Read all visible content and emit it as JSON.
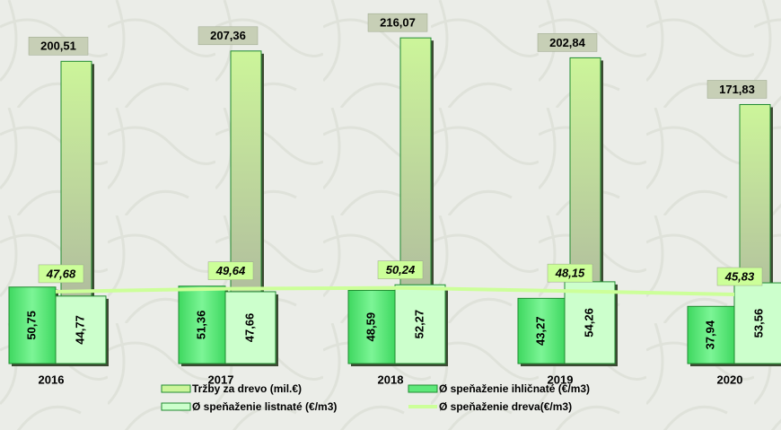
{
  "chart_data": {
    "type": "bar",
    "categories": [
      "2016",
      "2017",
      "2018",
      "2019",
      "2020"
    ],
    "ylim": [
      0,
      240
    ],
    "series": [
      {
        "name": "Tržby za drevo (mil.€)",
        "type": "bar",
        "color": "#ccf59a",
        "values": [
          200.51,
          207.36,
          216.07,
          202.84,
          171.83
        ],
        "value_labels": [
          "200,51",
          "207,36",
          "216,07",
          "202,84",
          "171,83"
        ]
      },
      {
        "name": "Ø speňaženie ihličnaté (€/m3)",
        "type": "bar",
        "color": "#5ee87a",
        "values": [
          50.75,
          51.36,
          48.59,
          43.27,
          37.94
        ],
        "value_labels": [
          "50,75",
          "51,36",
          "48,59",
          "43,27",
          "37,94"
        ]
      },
      {
        "name": "Ø speňaženie listnaté (€/m3)",
        "type": "bar",
        "color": "#ccffcc",
        "values": [
          44.77,
          47.66,
          52.27,
          54.26,
          53.56
        ],
        "value_labels": [
          "44,77",
          "47,66",
          "52,27",
          "54,26",
          "53,56"
        ]
      },
      {
        "name": "Ø speňaženie dreva(€/m3)",
        "type": "line",
        "color": "#ccff99",
        "values": [
          47.68,
          49.64,
          50.24,
          48.15,
          45.83
        ],
        "value_labels": [
          "47,68",
          "49,64",
          "50,24",
          "48,15",
          "45,83"
        ]
      }
    ]
  }
}
